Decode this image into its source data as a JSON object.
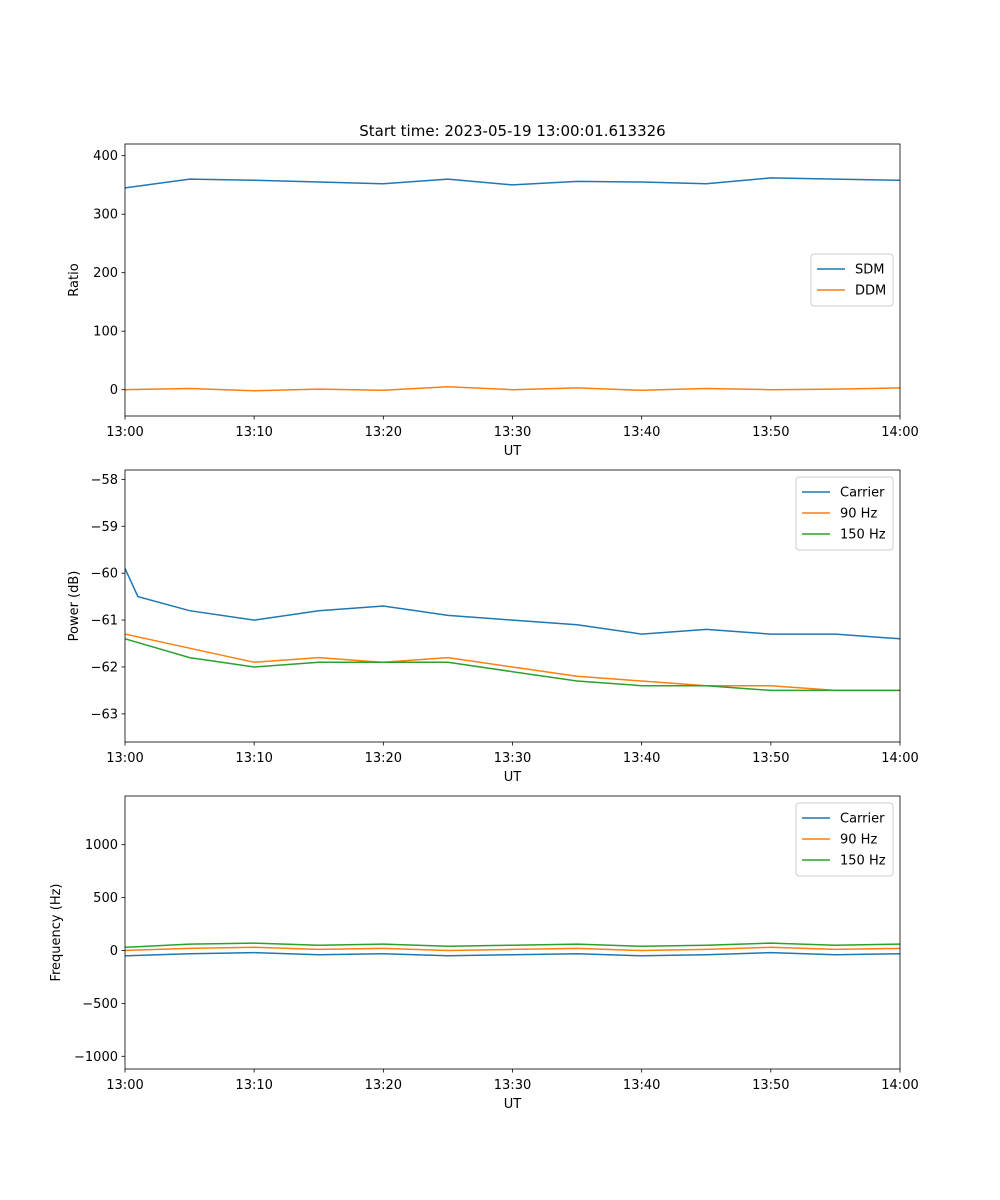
{
  "figure": {
    "title": "Start time: 2023-05-19 13:00:01.613326"
  },
  "chart_data": [
    {
      "type": "line",
      "title": "Start time: 2023-05-19 13:00:01.613326",
      "xlabel": "UT",
      "ylabel": "Ratio",
      "xlim": [
        "13:00",
        "14:00"
      ],
      "ylim": [
        -45,
        420
      ],
      "xticks": [
        "13:00",
        "13:10",
        "13:20",
        "13:30",
        "13:40",
        "13:50",
        "14:00"
      ],
      "yticks": [
        0,
        100,
        200,
        300,
        400
      ],
      "legend": "center-right",
      "series": [
        {
          "name": "SDM",
          "color": "#1f77b4",
          "x": [
            "13:00",
            "13:05",
            "13:10",
            "13:15",
            "13:20",
            "13:25",
            "13:30",
            "13:35",
            "13:40",
            "13:45",
            "13:50",
            "13:55",
            "14:00"
          ],
          "y": [
            345,
            360,
            358,
            355,
            352,
            360,
            350,
            356,
            355,
            352,
            362,
            360,
            358
          ]
        },
        {
          "name": "DDM",
          "color": "#ff7f0e",
          "x": [
            "13:00",
            "13:05",
            "13:10",
            "13:15",
            "13:20",
            "13:25",
            "13:30",
            "13:35",
            "13:40",
            "13:45",
            "13:50",
            "13:55",
            "14:00"
          ],
          "y": [
            0,
            2,
            -2,
            1,
            -1,
            5,
            0,
            3,
            -1,
            2,
            0,
            1,
            3
          ]
        }
      ]
    },
    {
      "type": "line",
      "title": "",
      "xlabel": "UT",
      "ylabel": "Power (dB)",
      "xlim": [
        "13:00",
        "14:00"
      ],
      "ylim": [
        -63.6,
        -57.8
      ],
      "xticks": [
        "13:00",
        "13:10",
        "13:20",
        "13:30",
        "13:40",
        "13:50",
        "14:00"
      ],
      "yticks": [
        -58,
        -59,
        -60,
        -61,
        -62,
        -63
      ],
      "legend": "top-right",
      "series": [
        {
          "name": "Carrier",
          "color": "#1f77b4",
          "x": [
            "13:00",
            "13:01",
            "13:05",
            "13:10",
            "13:15",
            "13:20",
            "13:25",
            "13:30",
            "13:35",
            "13:40",
            "13:45",
            "13:50",
            "13:55",
            "14:00"
          ],
          "y": [
            -59.9,
            -60.5,
            -60.8,
            -61.0,
            -60.8,
            -60.7,
            -60.9,
            -61.0,
            -61.1,
            -61.3,
            -61.2,
            -61.3,
            -61.3,
            -61.4
          ]
        },
        {
          "name": "90 Hz",
          "color": "#ff7f0e",
          "x": [
            "13:00",
            "13:05",
            "13:10",
            "13:15",
            "13:20",
            "13:25",
            "13:30",
            "13:35",
            "13:40",
            "13:45",
            "13:50",
            "13:55",
            "14:00"
          ],
          "y": [
            -61.3,
            -61.6,
            -61.9,
            -61.8,
            -61.9,
            -61.8,
            -62.0,
            -62.2,
            -62.3,
            -62.4,
            -62.4,
            -62.5,
            -62.5
          ]
        },
        {
          "name": "150 Hz",
          "color": "#2ca02c",
          "x": [
            "13:00",
            "13:05",
            "13:10",
            "13:15",
            "13:20",
            "13:25",
            "13:30",
            "13:35",
            "13:40",
            "13:45",
            "13:50",
            "13:55",
            "14:00"
          ],
          "y": [
            -61.4,
            -61.8,
            -62.0,
            -61.9,
            -61.9,
            -61.9,
            -62.1,
            -62.3,
            -62.4,
            -62.4,
            -62.5,
            -62.5,
            -62.5
          ]
        }
      ]
    },
    {
      "type": "line",
      "title": "",
      "xlabel": "UT",
      "ylabel": "Frequency (Hz)",
      "xlim": [
        "13:00",
        "14:00"
      ],
      "ylim": [
        -1120,
        1460
      ],
      "xticks": [
        "13:00",
        "13:10",
        "13:20",
        "13:30",
        "13:40",
        "13:50",
        "14:00"
      ],
      "yticks": [
        1000,
        500,
        0,
        -500,
        -1000
      ],
      "legend": "top-right",
      "series": [
        {
          "name": "Carrier",
          "color": "#1f77b4",
          "x": [
            "13:00",
            "13:05",
            "13:10",
            "13:15",
            "13:20",
            "13:25",
            "13:30",
            "13:35",
            "13:40",
            "13:45",
            "13:50",
            "13:55",
            "14:00"
          ],
          "y": [
            -50,
            -30,
            -20,
            -40,
            -30,
            -50,
            -40,
            -30,
            -50,
            -40,
            -20,
            -40,
            -30
          ]
        },
        {
          "name": "90 Hz",
          "color": "#ff7f0e",
          "x": [
            "13:00",
            "13:05",
            "13:10",
            "13:15",
            "13:20",
            "13:25",
            "13:30",
            "13:35",
            "13:40",
            "13:45",
            "13:50",
            "13:55",
            "14:00"
          ],
          "y": [
            0,
            20,
            30,
            10,
            20,
            0,
            10,
            20,
            0,
            10,
            30,
            10,
            20
          ]
        },
        {
          "name": "150 Hz",
          "color": "#2ca02c",
          "x": [
            "13:00",
            "13:05",
            "13:10",
            "13:15",
            "13:20",
            "13:25",
            "13:30",
            "13:35",
            "13:40",
            "13:45",
            "13:50",
            "13:55",
            "14:00"
          ],
          "y": [
            30,
            60,
            70,
            50,
            60,
            40,
            50,
            60,
            40,
            50,
            70,
            50,
            60
          ]
        }
      ]
    }
  ]
}
